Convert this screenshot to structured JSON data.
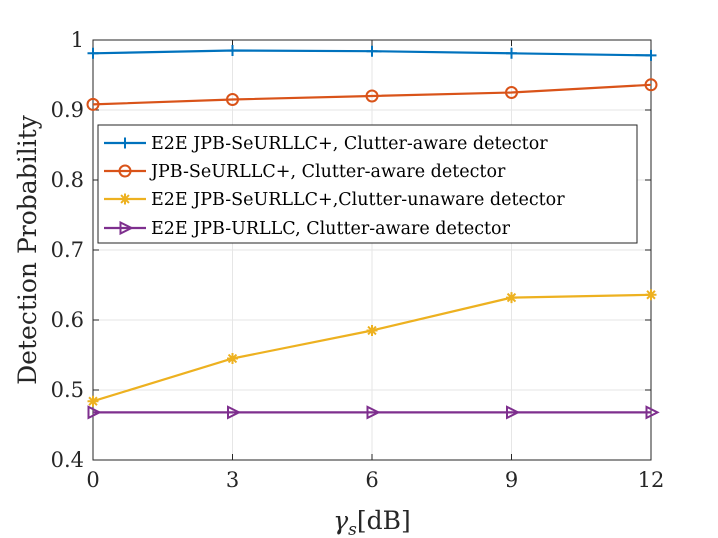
{
  "chart_data": {
    "type": "line",
    "title": "",
    "xlabel": "γs[dB]",
    "xlabel_parts": {
      "base": "γ",
      "sub": "s",
      "unit": "[dB]"
    },
    "ylabel": "Detection Probability",
    "x": [
      0,
      3,
      6,
      9,
      12
    ],
    "xlim": [
      0,
      12
    ],
    "ylim": [
      0.4,
      1
    ],
    "xticks": [
      0,
      3,
      6,
      9,
      12
    ],
    "xtick_labels": [
      "0",
      "3",
      "6",
      "9",
      "12"
    ],
    "yticks": [
      0.4,
      0.5,
      0.6,
      0.7,
      0.8,
      0.9,
      1.0
    ],
    "ytick_labels": [
      "0.4",
      "0.5",
      "0.6",
      "0.7",
      "0.8",
      "0.9",
      "1"
    ],
    "grid": true,
    "legend_position": "upper-left",
    "series": [
      {
        "name": "E2E JPB-SeURLLC+, Clutter-aware detector",
        "color": "#0072BD",
        "marker": "plus",
        "values": [
          0.981,
          0.985,
          0.984,
          0.981,
          0.978
        ]
      },
      {
        "name": "JPB-SeURLLC+, Clutter-aware detector",
        "color": "#D95319",
        "marker": "circle",
        "values": [
          0.908,
          0.915,
          0.92,
          0.925,
          0.936
        ]
      },
      {
        "name": "E2E JPB-SeURLLC+,Clutter-unaware detector",
        "color": "#EDB120",
        "marker": "asterisk",
        "values": [
          0.484,
          0.545,
          0.585,
          0.632,
          0.636
        ]
      },
      {
        "name": "E2E JPB-URLLC, Clutter-aware detector",
        "color": "#7E2F8E",
        "marker": "triangle-right",
        "values": [
          0.468,
          0.468,
          0.468,
          0.468,
          0.468
        ]
      }
    ]
  }
}
